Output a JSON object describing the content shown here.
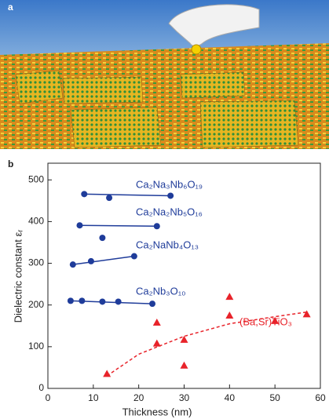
{
  "panel_a": {
    "label": "a"
  },
  "chart_data": {
    "type": "scatter",
    "panel_label": "b",
    "x_label": "Thickness (nm)",
    "y_label": "Dielectric constant εᵣ",
    "xlim": [
      0,
      60
    ],
    "xticks": [
      0,
      10,
      20,
      30,
      40,
      50,
      60
    ],
    "ylim": [
      0,
      540
    ],
    "yticks": [
      0,
      100,
      200,
      300,
      400,
      500
    ],
    "series": [
      {
        "name": "Ca₂Na₃Nb₆O₁₉",
        "color": "#1f3c9a",
        "marker": "circle",
        "x": [
          8,
          13.5,
          27
        ],
        "values": [
          466,
          457,
          462
        ]
      },
      {
        "name": "Ca₂Na₂Nb₅O₁₆",
        "color": "#1f3c9a",
        "marker": "circle",
        "x": [
          7,
          12,
          24
        ],
        "values": [
          391,
          361,
          389
        ]
      },
      {
        "name": "Ca₂NaNb₄O₁₃",
        "color": "#1f3c9a",
        "marker": "circle",
        "x": [
          5.5,
          9.5,
          19
        ],
        "values": [
          297,
          305,
          317
        ]
      },
      {
        "name": "Ca₂Nb₃O₁₀",
        "color": "#1f3c9a",
        "marker": "circle",
        "x": [
          5,
          7.5,
          12,
          15.5,
          23
        ],
        "values": [
          210,
          210,
          208,
          208,
          203
        ]
      },
      {
        "name": "(Ba,Sr)TiO₃",
        "color": "#e8232a",
        "marker": "triangle",
        "x": [
          13,
          24,
          24,
          30,
          30,
          40,
          40,
          50,
          57
        ],
        "values": [
          35,
          158,
          108,
          117,
          55,
          220,
          175,
          162,
          178
        ],
        "trend": {
          "x": [
            13,
            20,
            30,
            40,
            50,
            57
          ],
          "values": [
            30,
            82,
            125,
            155,
            172,
            183
          ]
        }
      }
    ]
  }
}
